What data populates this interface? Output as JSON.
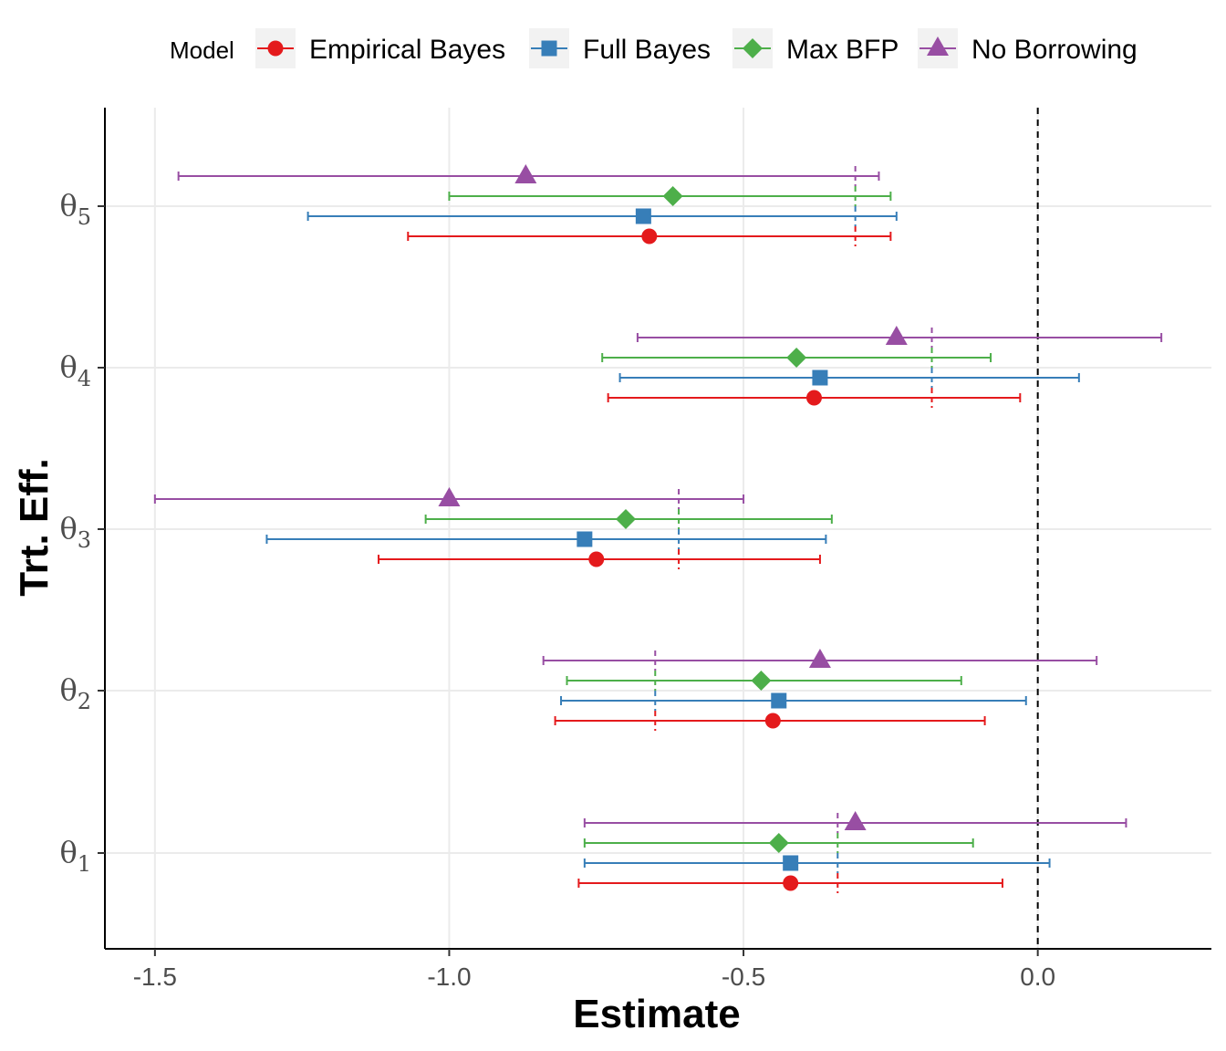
{
  "chart_data": {
    "type": "forest",
    "title": "",
    "xlabel": "Estimate",
    "ylabel": "Trt. Eff.",
    "xlim": [
      -1.585,
      0.295
    ],
    "x_ticks": [
      -1.5,
      -1.0,
      -0.5,
      0.0
    ],
    "x_tick_labels": [
      "-1.5",
      "-1.0",
      "-0.5",
      "0.0"
    ],
    "categories": [
      {
        "label": "θ",
        "sub": "1"
      },
      {
        "label": "θ",
        "sub": "2"
      },
      {
        "label": "θ",
        "sub": "3"
      },
      {
        "label": "θ",
        "sub": "4"
      },
      {
        "label": "θ",
        "sub": "5"
      }
    ],
    "reference_line": 0.0,
    "legend": {
      "title": "Model",
      "position": "top"
    },
    "series": [
      {
        "name": "Empirical Bayes",
        "color": "#e41a1c",
        "shape": "circle",
        "estimates": [
          -0.42,
          -0.45,
          -0.75,
          -0.38,
          -0.66
        ],
        "lower": [
          -0.78,
          -0.82,
          -1.12,
          -0.73,
          -1.07
        ],
        "upper": [
          -0.06,
          -0.09,
          -0.37,
          -0.03,
          -0.25
        ]
      },
      {
        "name": "Full Bayes",
        "color": "#377eb8",
        "shape": "square",
        "estimates": [
          -0.42,
          -0.44,
          -0.77,
          -0.37,
          -0.67
        ],
        "lower": [
          -0.77,
          -0.81,
          -1.31,
          -0.71,
          -1.24
        ],
        "upper": [
          0.02,
          -0.02,
          -0.36,
          0.07,
          -0.24
        ]
      },
      {
        "name": "Max BFP",
        "color": "#4daf4a",
        "shape": "diamond",
        "estimates": [
          -0.44,
          -0.47,
          -0.7,
          -0.41,
          -0.62
        ],
        "lower": [
          -0.77,
          -0.8,
          -1.04,
          -0.74,
          -1.0
        ],
        "upper": [
          -0.11,
          -0.13,
          -0.35,
          -0.08,
          -0.25
        ]
      },
      {
        "name": "No Borrowing",
        "color": "#984ea3",
        "shape": "triangle",
        "estimates": [
          -0.31,
          -0.37,
          -1.0,
          -0.24,
          -0.87
        ],
        "lower": [
          -0.77,
          -0.84,
          -1.5,
          -0.68,
          -1.46
        ],
        "upper": [
          0.15,
          0.1,
          -0.5,
          0.21,
          -0.27
        ]
      }
    ],
    "category_reference_values": [
      -0.34,
      -0.65,
      -0.61,
      -0.18,
      -0.31
    ]
  }
}
